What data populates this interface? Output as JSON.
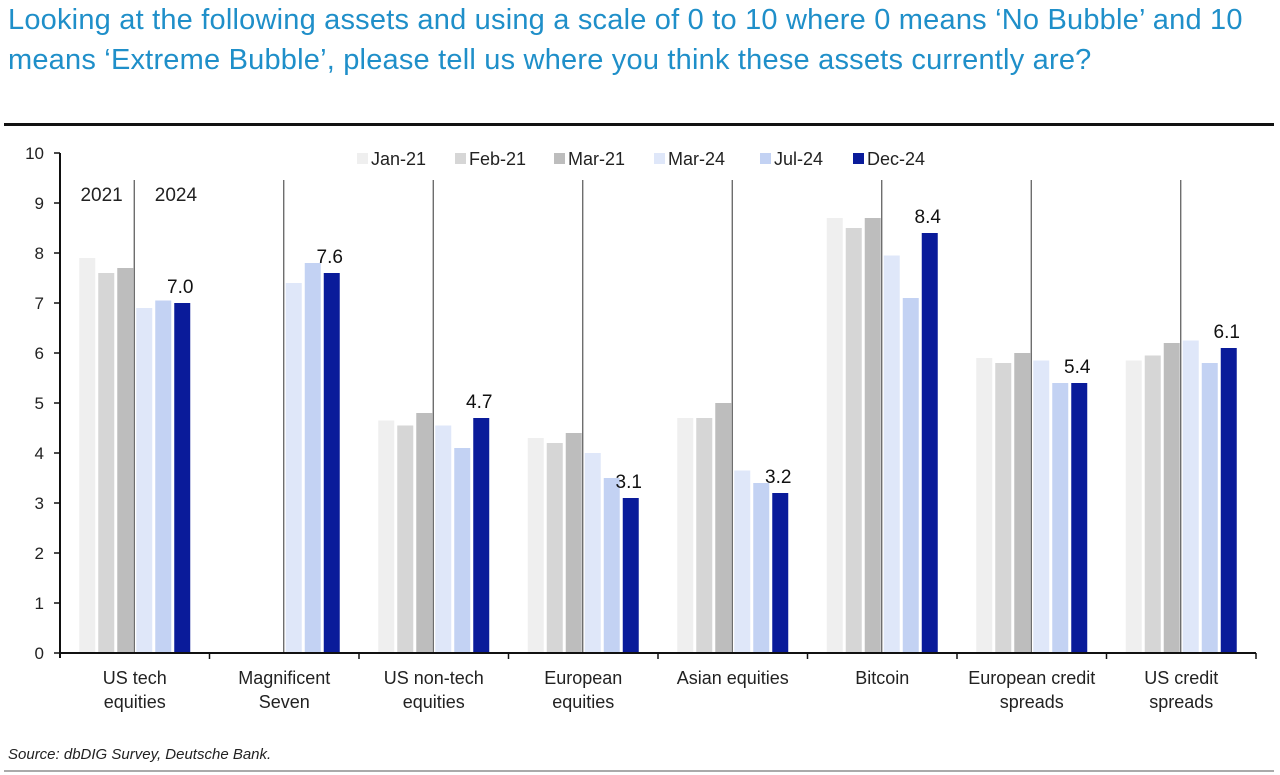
{
  "title": "Looking at the following assets and using a scale of 0 to 10 where 0 means ‘No Bubble’ and 10 means ‘Extreme Bubble’, please tell us where you think these assets currently are?",
  "source": "Source: dbDIG Survey, Deutsche Bank.",
  "chart_data": {
    "type": "bar",
    "title": "Looking at the following assets and using a scale of 0 to 10 where 0 means ‘No Bubble’ and 10 means ‘Extreme Bubble’, please tell us where you think these assets currently are?",
    "xlabel": "",
    "ylabel": "",
    "ylim": [
      0,
      10
    ],
    "yticks": [
      0,
      1,
      2,
      3,
      4,
      5,
      6,
      7,
      8,
      9,
      10
    ],
    "grid": false,
    "legend_position": "top-center",
    "categories": [
      [
        "US tech",
        "equities"
      ],
      [
        "Magnificent",
        "Seven"
      ],
      [
        "US non-tech",
        "equities"
      ],
      [
        "European",
        "equities"
      ],
      [
        "Asian equities"
      ],
      [
        "Bitcoin"
      ],
      [
        "European credit",
        "spreads"
      ],
      [
        "US credit",
        "spreads"
      ]
    ],
    "period_annotations": [
      "2021",
      "2024"
    ],
    "series": [
      {
        "name": "Jan-21",
        "color": "#efefef",
        "values": [
          7.9,
          null,
          4.65,
          4.3,
          4.7,
          8.7,
          5.9,
          5.85
        ]
      },
      {
        "name": "Feb-21",
        "color": "#d6d6d6",
        "values": [
          7.6,
          null,
          4.55,
          4.2,
          4.7,
          8.5,
          5.8,
          5.95
        ]
      },
      {
        "name": "Mar-21",
        "color": "#bdbdbd",
        "values": [
          7.7,
          null,
          4.8,
          4.4,
          5.0,
          8.7,
          6.0,
          6.2
        ]
      },
      {
        "name": "Mar-24",
        "color": "#dfe7f9",
        "values": [
          6.9,
          7.4,
          4.55,
          4.0,
          3.65,
          7.95,
          5.85,
          6.25
        ]
      },
      {
        "name": "Jul-24",
        "color": "#c3d2f3",
        "values": [
          7.05,
          7.8,
          4.1,
          3.5,
          3.4,
          7.1,
          5.4,
          5.8
        ]
      },
      {
        "name": "Dec-24",
        "color": "#0a1b9a",
        "values": [
          7.0,
          7.6,
          4.7,
          3.1,
          3.2,
          8.4,
          5.4,
          6.1
        ]
      }
    ],
    "data_labels": {
      "series": "Dec-24",
      "values": [
        "7.0",
        "7.6",
        "4.7",
        "3.1",
        "3.2",
        "8.4",
        "5.4",
        "6.1"
      ]
    }
  }
}
